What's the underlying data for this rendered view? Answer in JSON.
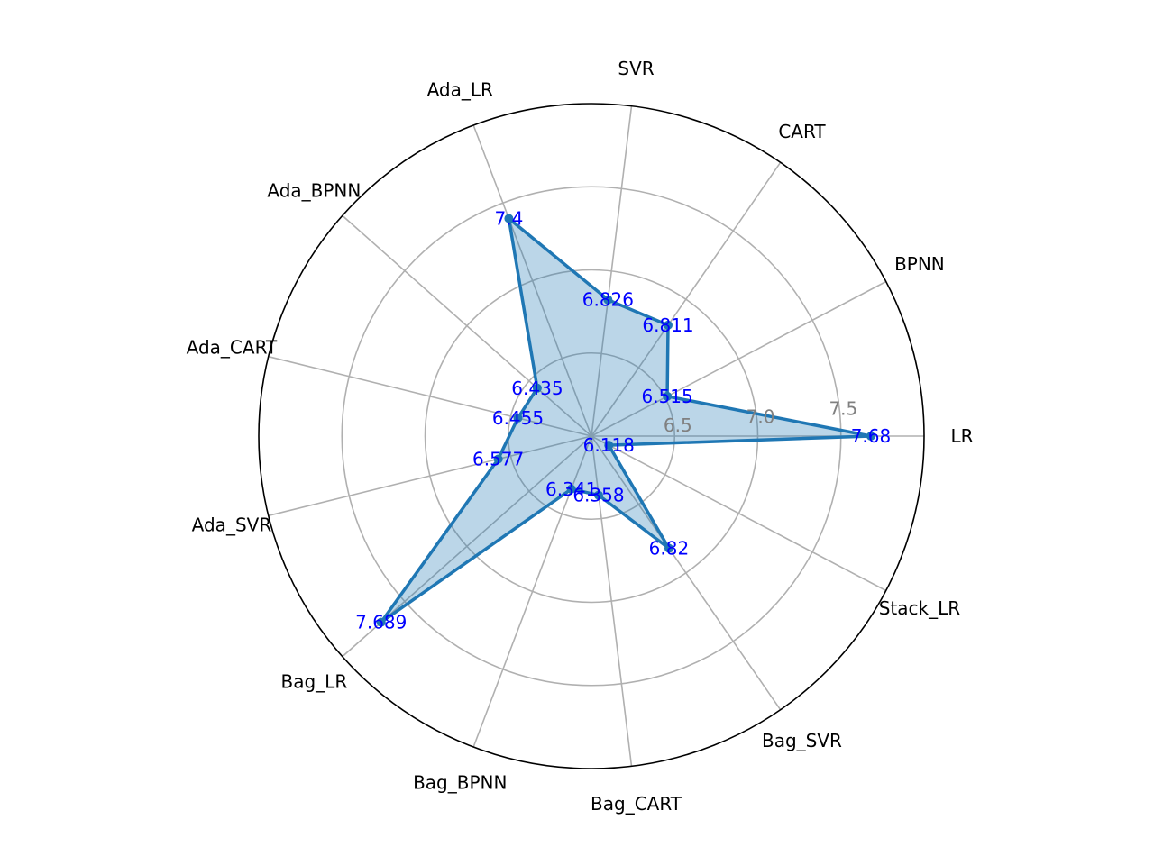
{
  "chart_data": {
    "type": "radar",
    "categories": [
      "LR",
      "BPNN",
      "CART",
      "SVR",
      "Ada_LR",
      "Ada_BPNN",
      "Ada_CART",
      "Ada_SVR",
      "Bag_LR",
      "Bag_BPNN",
      "Bag_CART",
      "Bag_SVR",
      "Stack_LR"
    ],
    "series": [
      {
        "values": [
          7.68,
          6.515,
          6.811,
          6.826,
          7.4,
          6.435,
          6.455,
          6.577,
          7.689,
          6.341,
          6.358,
          6.82,
          6.118
        ]
      }
    ],
    "data_labels": [
      "7.68",
      "6.515",
      "6.811",
      "6.826",
      "7.4",
      "6.435",
      "6.455",
      "6.577",
      "7.689",
      "6.341",
      "6.358",
      "6.82",
      "6.118"
    ],
    "radial_ticks": [
      6.5,
      7.0,
      7.5
    ],
    "radial_tick_labels": [
      "6.5",
      "7.0",
      "7.5"
    ],
    "rlim": [
      6.0,
      8.0
    ],
    "grid": true,
    "legend": "none"
  },
  "colors": {
    "line": "#1f77b4",
    "fill": "#1f77b4",
    "fill_opacity": 0.3,
    "data_label": "#0000ff",
    "grid": "#b0b0b0",
    "tick_label": "#808080",
    "outer_circle": "#000000"
  }
}
